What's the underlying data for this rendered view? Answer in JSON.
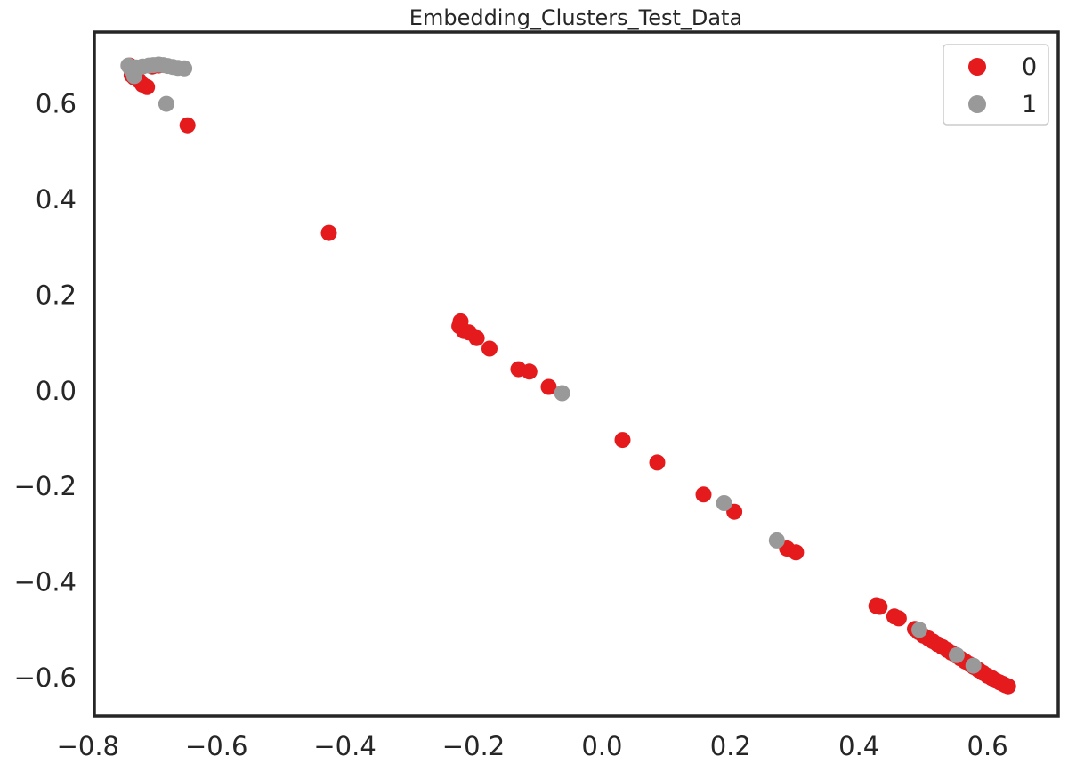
{
  "chart_data": {
    "type": "scatter",
    "title": "Embedding_Clusters_Test_Data",
    "xlabel": "",
    "ylabel": "",
    "xlim": [
      -0.79,
      0.71
    ],
    "ylim": [
      -0.68,
      0.75
    ],
    "x_ticks": [
      -0.8,
      -0.6,
      -0.4,
      -0.2,
      0.0,
      0.2,
      0.4,
      0.6
    ],
    "y_ticks": [
      -0.6,
      -0.4,
      -0.2,
      0.0,
      0.2,
      0.4,
      0.6
    ],
    "x_tick_labels": [
      "−0.8",
      "−0.6",
      "−0.4",
      "−0.2",
      "0.0",
      "0.2",
      "0.4",
      "0.6"
    ],
    "y_tick_labels": [
      "−0.6",
      "−0.4",
      "−0.2",
      "0.0",
      "0.2",
      "0.4",
      "0.6"
    ],
    "grid": false,
    "legend_position": "top-right",
    "series": [
      {
        "name": "0",
        "color": "#e41a1c",
        "points": [
          [
            -0.735,
            0.68
          ],
          [
            -0.73,
            0.675
          ],
          [
            -0.725,
            0.67
          ],
          [
            -0.732,
            0.66
          ],
          [
            -0.728,
            0.655
          ],
          [
            -0.72,
            0.648
          ],
          [
            -0.715,
            0.64
          ],
          [
            -0.708,
            0.635
          ],
          [
            -0.7,
            0.678
          ],
          [
            -0.69,
            0.68
          ],
          [
            -0.645,
            0.555
          ],
          [
            -0.425,
            0.33
          ],
          [
            -0.22,
            0.145
          ],
          [
            -0.222,
            0.135
          ],
          [
            -0.215,
            0.125
          ],
          [
            -0.207,
            0.122
          ],
          [
            -0.195,
            0.11
          ],
          [
            -0.175,
            0.088
          ],
          [
            -0.13,
            0.045
          ],
          [
            -0.113,
            0.04
          ],
          [
            -0.083,
            0.008
          ],
          [
            0.032,
            -0.103
          ],
          [
            0.086,
            -0.15
          ],
          [
            0.158,
            -0.217
          ],
          [
            0.206,
            -0.253
          ],
          [
            0.288,
            -0.33
          ],
          [
            0.302,
            -0.338
          ],
          [
            0.427,
            -0.45
          ],
          [
            0.432,
            -0.452
          ],
          [
            0.455,
            -0.472
          ],
          [
            0.462,
            -0.476
          ],
          [
            0.487,
            -0.498
          ],
          [
            0.493,
            -0.505
          ],
          [
            0.5,
            -0.512
          ],
          [
            0.508,
            -0.518
          ],
          [
            0.515,
            -0.524
          ],
          [
            0.522,
            -0.53
          ],
          [
            0.53,
            -0.536
          ],
          [
            0.537,
            -0.542
          ],
          [
            0.544,
            -0.548
          ],
          [
            0.551,
            -0.554
          ],
          [
            0.558,
            -0.56
          ],
          [
            0.565,
            -0.566
          ],
          [
            0.572,
            -0.572
          ],
          [
            0.579,
            -0.578
          ],
          [
            0.586,
            -0.584
          ],
          [
            0.593,
            -0.59
          ],
          [
            0.6,
            -0.596
          ],
          [
            0.607,
            -0.601
          ],
          [
            0.613,
            -0.606
          ],
          [
            0.619,
            -0.61
          ],
          [
            0.624,
            -0.613
          ],
          [
            0.628,
            -0.616
          ],
          [
            0.632,
            -0.618
          ]
        ]
      },
      {
        "name": "1",
        "color": "#999999",
        "points": [
          [
            -0.737,
            0.68
          ],
          [
            -0.733,
            0.672
          ],
          [
            -0.728,
            0.665
          ],
          [
            -0.725,
            0.676
          ],
          [
            -0.715,
            0.678
          ],
          [
            -0.705,
            0.68
          ],
          [
            -0.698,
            0.681
          ],
          [
            -0.69,
            0.682
          ],
          [
            -0.683,
            0.681
          ],
          [
            -0.676,
            0.679
          ],
          [
            -0.668,
            0.677
          ],
          [
            -0.66,
            0.675
          ],
          [
            -0.65,
            0.674
          ],
          [
            -0.728,
            0.658
          ],
          [
            -0.678,
            0.6
          ],
          [
            -0.062,
            -0.005
          ],
          [
            0.19,
            -0.235
          ],
          [
            0.272,
            -0.313
          ],
          [
            0.494,
            -0.5
          ],
          [
            0.552,
            -0.553
          ],
          [
            0.578,
            -0.575
          ]
        ]
      }
    ]
  }
}
